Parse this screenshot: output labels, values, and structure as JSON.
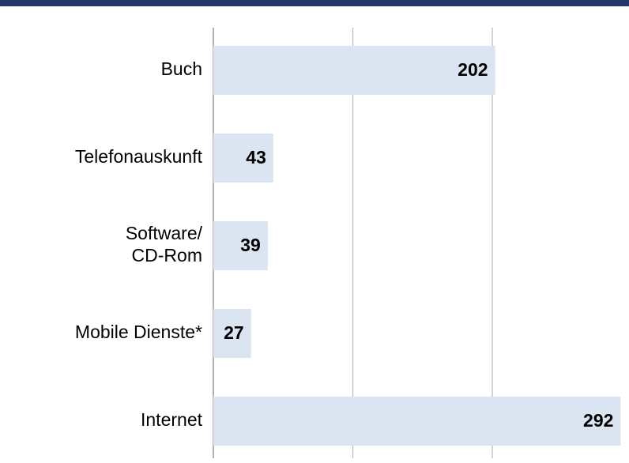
{
  "chart_data": {
    "type": "bar",
    "orientation": "horizontal",
    "categories": [
      "Buch",
      "Telefonauskunft",
      "Software/\nCD-Rom",
      "Mobile Dienste*",
      "Internet"
    ],
    "values": [
      202,
      43,
      39,
      27,
      292
    ],
    "color": "#dbe5f1",
    "xlim": [
      0,
      298
    ],
    "xticks": [
      0,
      100,
      200
    ],
    "grid": true
  }
}
